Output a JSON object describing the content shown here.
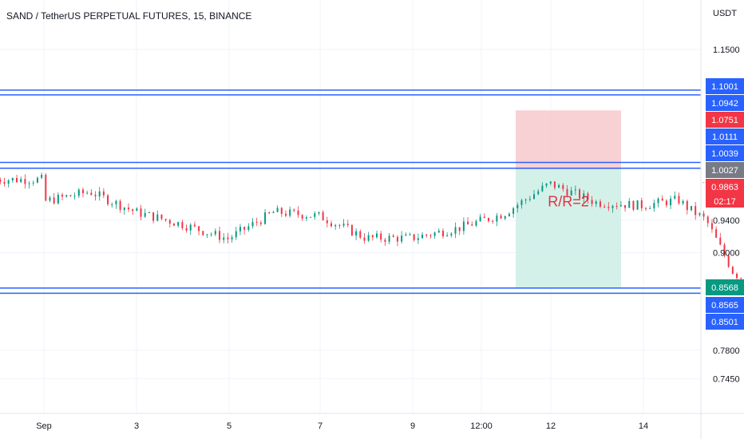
{
  "header": {
    "symbol_title": "SAND / TetherUS PERPETUAL FUTURES, 15, BINANCE",
    "currency": "USDT"
  },
  "chart_data": {
    "type": "candlestick",
    "title": "SAND / TetherUS PERPETUAL FUTURES, 15, BINANCE",
    "ylabel": "USDT",
    "ylim": [
      0.72,
      1.17
    ],
    "y_ticks": [
      "1.1500",
      "0.9400",
      "0.9000",
      "0.7800",
      "0.7450"
    ],
    "x_ticks": [
      "Sep",
      "3",
      "5",
      "7",
      "9",
      "12:00",
      "12",
      "14"
    ],
    "grid": true,
    "horizontal_levels": [
      {
        "name": "resistance-top",
        "value": 1.0942,
        "color": "#2962ff"
      },
      {
        "name": "resistance-top-2",
        "value": 1.1001,
        "color": "#2962ff"
      },
      {
        "name": "mid-level",
        "value": 1.0039,
        "color": "#2962ff"
      },
      {
        "name": "mid-level-2",
        "value": 1.0111,
        "color": "#2962ff"
      },
      {
        "name": "support",
        "value": 0.8565,
        "color": "#2962ff"
      },
      {
        "name": "support-2",
        "value": 0.8501,
        "color": "#2962ff"
      }
    ],
    "price_tags": [
      {
        "label": "1.1001",
        "value": 1.1001,
        "color": "#2962ff"
      },
      {
        "label": "1.0942",
        "value": 1.0942,
        "color": "#2962ff"
      },
      {
        "label": "1.0751",
        "value": 1.0751,
        "color": "#f23645"
      },
      {
        "label": "1.0111",
        "value": 1.0111,
        "color": "#2962ff"
      },
      {
        "label": "1.0039",
        "value": 1.0039,
        "color": "#2962ff"
      },
      {
        "label": "1.0027",
        "value": 1.0027,
        "color": "#787b86"
      },
      {
        "label": "0.9863",
        "value": 0.9863,
        "color": "#f23645"
      },
      {
        "label": "0.8568",
        "value": 0.8568,
        "color": "#089981"
      },
      {
        "label": "0.8565",
        "value": 0.8565,
        "color": "#2962ff"
      },
      {
        "label": "0.8501",
        "value": 0.8501,
        "color": "#2962ff"
      }
    ],
    "countdown": "02:17",
    "last_price": 0.9863,
    "position": {
      "type": "short",
      "entry": 1.0027,
      "stop": 1.0751,
      "target": 0.8568,
      "label": "R/R=2",
      "stop_color": "#f7c9cc",
      "target_color": "#cdeee5"
    },
    "series": [
      {
        "close_path": [
          [
            1.0,
            0.963
          ],
          [
            1.5,
            0.975
          ],
          [
            2.0,
            0.95
          ],
          [
            2.5,
            0.935
          ],
          [
            3.0,
            0.917
          ],
          [
            3.5,
            0.95
          ],
          [
            4.0,
            0.945
          ],
          [
            4.5,
            0.918
          ],
          [
            5.0,
            0.918
          ],
          [
            5.5,
            0.93
          ],
          [
            6.0,
            0.948
          ],
          [
            6.5,
            0.985
          ],
          [
            7.0,
            0.962
          ],
          [
            7.5,
            0.958
          ],
          [
            7.9,
            0.965
          ],
          [
            8.0,
            0.955
          ],
          [
            8.2,
            0.94
          ],
          [
            8.5,
            0.875
          ],
          [
            9.0,
            0.845
          ],
          [
            9.5,
            0.862
          ],
          [
            10.0,
            0.89
          ],
          [
            10.5,
            0.91
          ],
          [
            11.0,
            0.9
          ],
          [
            11.5,
            0.935
          ],
          [
            12.0,
            0.972
          ],
          [
            12.5,
            0.962
          ],
          [
            12.8,
            0.985
          ],
          [
            13.0,
            1.017
          ],
          [
            13.2,
            0.99
          ]
        ],
        "color_up": "#089981",
        "color_down": "#f23645"
      }
    ]
  }
}
